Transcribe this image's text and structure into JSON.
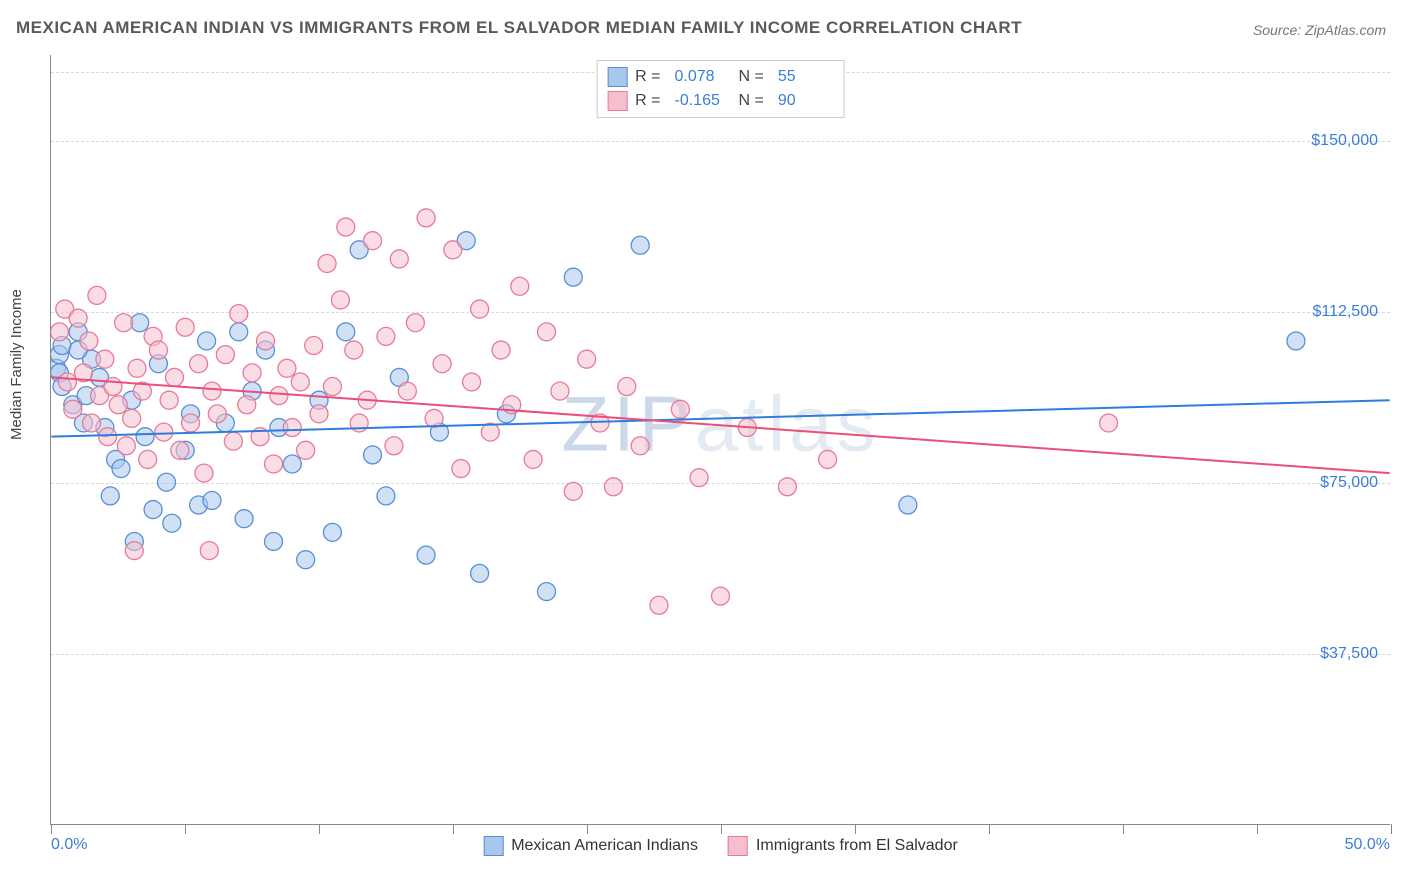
{
  "title": "MEXICAN AMERICAN INDIAN VS IMMIGRANTS FROM EL SALVADOR MEDIAN FAMILY INCOME CORRELATION CHART",
  "source": "Source: ZipAtlas.com",
  "y_axis_label": "Median Family Income",
  "watermark": "ZIPatlas",
  "chart": {
    "type": "scatter",
    "xlim": [
      0,
      50
    ],
    "ylim": [
      0,
      168750
    ],
    "x_tick_positions": [
      0,
      5,
      10,
      15,
      20,
      25,
      30,
      35,
      40,
      45,
      50
    ],
    "x_min_label": "0.0%",
    "x_max_label": "50.0%",
    "y_gridlines": [
      {
        "value": 37500,
        "label": "$37,500"
      },
      {
        "value": 75000,
        "label": "$75,000"
      },
      {
        "value": 112500,
        "label": "$112,500"
      },
      {
        "value": 150000,
        "label": "$150,000"
      }
    ],
    "top_gridline": 165000,
    "marker_radius": 9,
    "marker_opacity": 0.55,
    "grid_color": "#d8d8d8",
    "background_color": "#ffffff",
    "series": [
      {
        "name": "Mexican American Indians",
        "color_fill": "#a9c7ec",
        "color_stroke": "#5a8fd6",
        "R": "0.078",
        "N": "55",
        "trend": {
          "x1": 0,
          "y1": 85000,
          "x2": 50,
          "y2": 93000,
          "color": "#2f7ddb",
          "width": 2
        },
        "points": [
          [
            0.2,
            100000
          ],
          [
            0.3,
            103000
          ],
          [
            0.3,
            99000
          ],
          [
            0.4,
            105000
          ],
          [
            0.4,
            96000
          ],
          [
            0.8,
            92000
          ],
          [
            1.0,
            108000
          ],
          [
            1.2,
            88000
          ],
          [
            1.3,
            94000
          ],
          [
            1.5,
            102000
          ],
          [
            1.8,
            98000
          ],
          [
            2.0,
            87000
          ],
          [
            2.2,
            72000
          ],
          [
            2.4,
            80000
          ],
          [
            2.6,
            78000
          ],
          [
            3.0,
            93000
          ],
          [
            3.1,
            62000
          ],
          [
            3.3,
            110000
          ],
          [
            3.5,
            85000
          ],
          [
            3.8,
            69000
          ],
          [
            4.0,
            101000
          ],
          [
            4.3,
            75000
          ],
          [
            4.5,
            66000
          ],
          [
            5.0,
            82000
          ],
          [
            5.2,
            90000
          ],
          [
            5.5,
            70000
          ],
          [
            5.8,
            106000
          ],
          [
            6.0,
            71000
          ],
          [
            6.5,
            88000
          ],
          [
            7.0,
            108000
          ],
          [
            7.2,
            67000
          ],
          [
            7.5,
            95000
          ],
          [
            8.0,
            104000
          ],
          [
            8.3,
            62000
          ],
          [
            8.5,
            87000
          ],
          [
            9.0,
            79000
          ],
          [
            9.5,
            58000
          ],
          [
            10.0,
            93000
          ],
          [
            10.5,
            64000
          ],
          [
            11.0,
            108000
          ],
          [
            11.5,
            126000
          ],
          [
            12.0,
            81000
          ],
          [
            12.5,
            72000
          ],
          [
            13.0,
            98000
          ],
          [
            14.0,
            59000
          ],
          [
            14.5,
            86000
          ],
          [
            15.5,
            128000
          ],
          [
            16.0,
            55000
          ],
          [
            17.0,
            90000
          ],
          [
            18.5,
            51000
          ],
          [
            19.5,
            120000
          ],
          [
            22.0,
            127000
          ],
          [
            32.0,
            70000
          ],
          [
            46.5,
            106000
          ],
          [
            1.0,
            104000
          ]
        ]
      },
      {
        "name": "Immigrants from El Salvador",
        "color_fill": "#f6bfcd",
        "color_stroke": "#e77a9a",
        "R": "-0.165",
        "N": "90",
        "trend": {
          "x1": 0,
          "y1": 98000,
          "x2": 50,
          "y2": 77000,
          "color": "#e94f7a",
          "width": 2
        },
        "points": [
          [
            0.3,
            108000
          ],
          [
            0.5,
            113000
          ],
          [
            0.6,
            97000
          ],
          [
            0.8,
            91000
          ],
          [
            1.0,
            111000
          ],
          [
            1.2,
            99000
          ],
          [
            1.4,
            106000
          ],
          [
            1.5,
            88000
          ],
          [
            1.7,
            116000
          ],
          [
            1.8,
            94000
          ],
          [
            2.0,
            102000
          ],
          [
            2.1,
            85000
          ],
          [
            2.3,
            96000
          ],
          [
            2.5,
            92000
          ],
          [
            2.7,
            110000
          ],
          [
            2.8,
            83000
          ],
          [
            3.0,
            89000
          ],
          [
            3.2,
            100000
          ],
          [
            3.4,
            95000
          ],
          [
            3.6,
            80000
          ],
          [
            3.8,
            107000
          ],
          [
            4.0,
            104000
          ],
          [
            4.2,
            86000
          ],
          [
            4.4,
            93000
          ],
          [
            4.6,
            98000
          ],
          [
            4.8,
            82000
          ],
          [
            5.0,
            109000
          ],
          [
            5.2,
            88000
          ],
          [
            5.5,
            101000
          ],
          [
            5.7,
            77000
          ],
          [
            6.0,
            95000
          ],
          [
            6.2,
            90000
          ],
          [
            6.5,
            103000
          ],
          [
            6.8,
            84000
          ],
          [
            7.0,
            112000
          ],
          [
            7.3,
            92000
          ],
          [
            7.5,
            99000
          ],
          [
            7.8,
            85000
          ],
          [
            8.0,
            106000
          ],
          [
            8.3,
            79000
          ],
          [
            8.5,
            94000
          ],
          [
            8.8,
            100000
          ],
          [
            9.0,
            87000
          ],
          [
            9.3,
            97000
          ],
          [
            9.5,
            82000
          ],
          [
            9.8,
            105000
          ],
          [
            10.0,
            90000
          ],
          [
            10.3,
            123000
          ],
          [
            10.5,
            96000
          ],
          [
            10.8,
            115000
          ],
          [
            11.0,
            131000
          ],
          [
            11.3,
            104000
          ],
          [
            11.5,
            88000
          ],
          [
            11.8,
            93000
          ],
          [
            12.0,
            128000
          ],
          [
            12.5,
            107000
          ],
          [
            12.8,
            83000
          ],
          [
            13.0,
            124000
          ],
          [
            13.3,
            95000
          ],
          [
            13.6,
            110000
          ],
          [
            14.0,
            133000
          ],
          [
            14.3,
            89000
          ],
          [
            14.6,
            101000
          ],
          [
            15.0,
            126000
          ],
          [
            15.3,
            78000
          ],
          [
            15.7,
            97000
          ],
          [
            16.0,
            113000
          ],
          [
            16.4,
            86000
          ],
          [
            16.8,
            104000
          ],
          [
            17.2,
            92000
          ],
          [
            17.5,
            118000
          ],
          [
            18.0,
            80000
          ],
          [
            18.5,
            108000
          ],
          [
            19.0,
            95000
          ],
          [
            19.5,
            73000
          ],
          [
            20.0,
            102000
          ],
          [
            20.5,
            88000
          ],
          [
            21.0,
            74000
          ],
          [
            21.5,
            96000
          ],
          [
            22.0,
            83000
          ],
          [
            22.7,
            48000
          ],
          [
            23.5,
            91000
          ],
          [
            24.2,
            76000
          ],
          [
            25.0,
            50000
          ],
          [
            26.0,
            87000
          ],
          [
            27.5,
            74000
          ],
          [
            29.0,
            80000
          ],
          [
            39.5,
            88000
          ],
          [
            5.9,
            60000
          ],
          [
            3.1,
            60000
          ]
        ]
      }
    ]
  }
}
